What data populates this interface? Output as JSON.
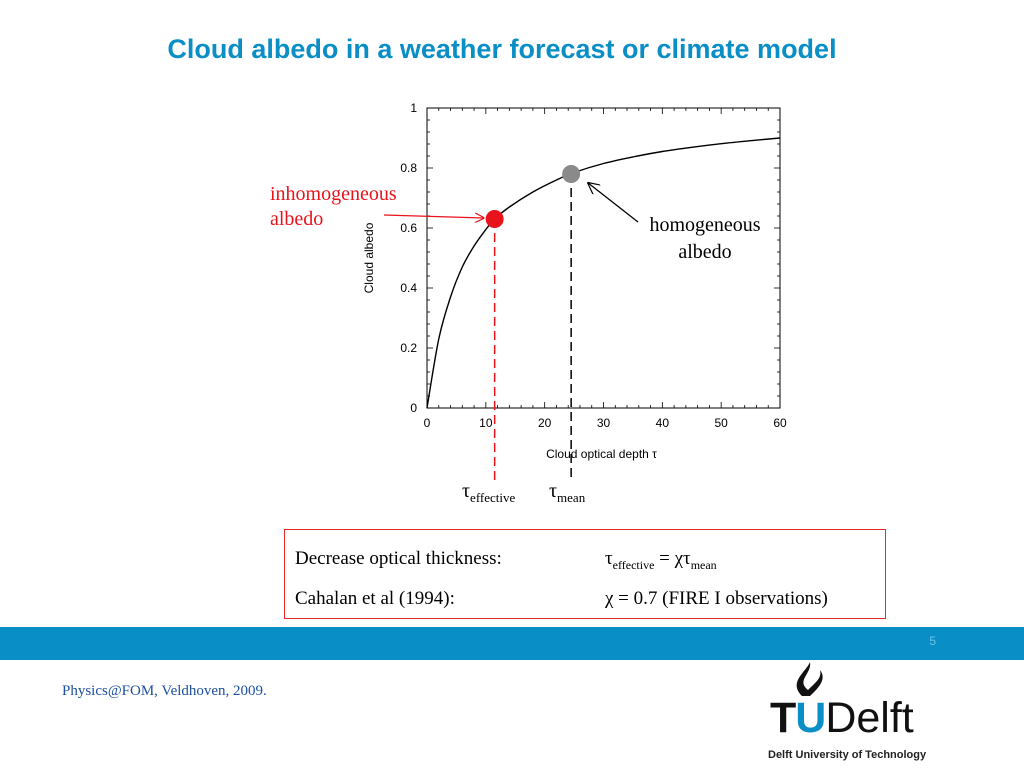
{
  "slide": {
    "title": "Cloud albedo in a weather forecast or climate model",
    "inhomogeneous_label_line1": "inhomogeneous",
    "inhomogeneous_label_line2": "albedo",
    "homogeneous_label_line1": "homogeneous",
    "homogeneous_label_line2": "albedo",
    "tau_symbol": "τ",
    "tau_effective_sub": "effective",
    "tau_mean_sub": "mean",
    "box": {
      "row1_lhs": "Decrease optical thickness:",
      "row1_rhs_tau": "τ",
      "row1_rhs_sub1": "effective",
      "row1_rhs_mid": " = χτ",
      "row1_rhs_sub2": "mean",
      "row2_lhs": "Cahalan et al (1994):",
      "row2_rhs": "χ = 0.7 (FIRE I observations)"
    },
    "page_number": "5",
    "footer": "Physics@FOM, Veldhoven, 2009.",
    "logo": {
      "tu_t": "T",
      "tu_u": "U",
      "delft": "Delft",
      "sub": "Delft University of Technology"
    }
  },
  "colors": {
    "title": "#0a8ec6",
    "inhomogeneous": "#e8131b",
    "homogeneous_point": "#8a8a8a",
    "band": "#0a8ec6"
  },
  "chart_data": {
    "type": "line",
    "xlabel": "Cloud optical depth τ",
    "ylabel": "Cloud albedo",
    "xlim": [
      0,
      60
    ],
    "ylim": [
      0,
      1
    ],
    "x_ticks": [
      0,
      10,
      20,
      30,
      40,
      50,
      60
    ],
    "y_ticks": [
      0,
      0.2,
      0.4,
      0.6,
      0.8,
      1
    ],
    "y_tick_labels": [
      "0",
      "0.2",
      "0.4",
      "0.6",
      "0.8",
      "1"
    ],
    "grid": false,
    "curve": {
      "x": [
        0,
        2,
        4,
        6,
        8,
        10,
        11.5,
        14,
        18,
        22,
        25,
        30,
        35,
        40,
        45,
        50,
        55,
        60
      ],
      "y": [
        0,
        0.23,
        0.37,
        0.47,
        0.54,
        0.595,
        0.63,
        0.67,
        0.72,
        0.76,
        0.785,
        0.815,
        0.837,
        0.855,
        0.869,
        0.881,
        0.891,
        0.9
      ]
    },
    "points": [
      {
        "label": "inhomogeneous albedo",
        "x": 11.5,
        "y": 0.63,
        "color": "#e8131b",
        "marker": "τeffective"
      },
      {
        "label": "homogeneous albedo",
        "x": 24.5,
        "y": 0.78,
        "color": "#8a8a8a",
        "marker": "τmean"
      }
    ]
  }
}
